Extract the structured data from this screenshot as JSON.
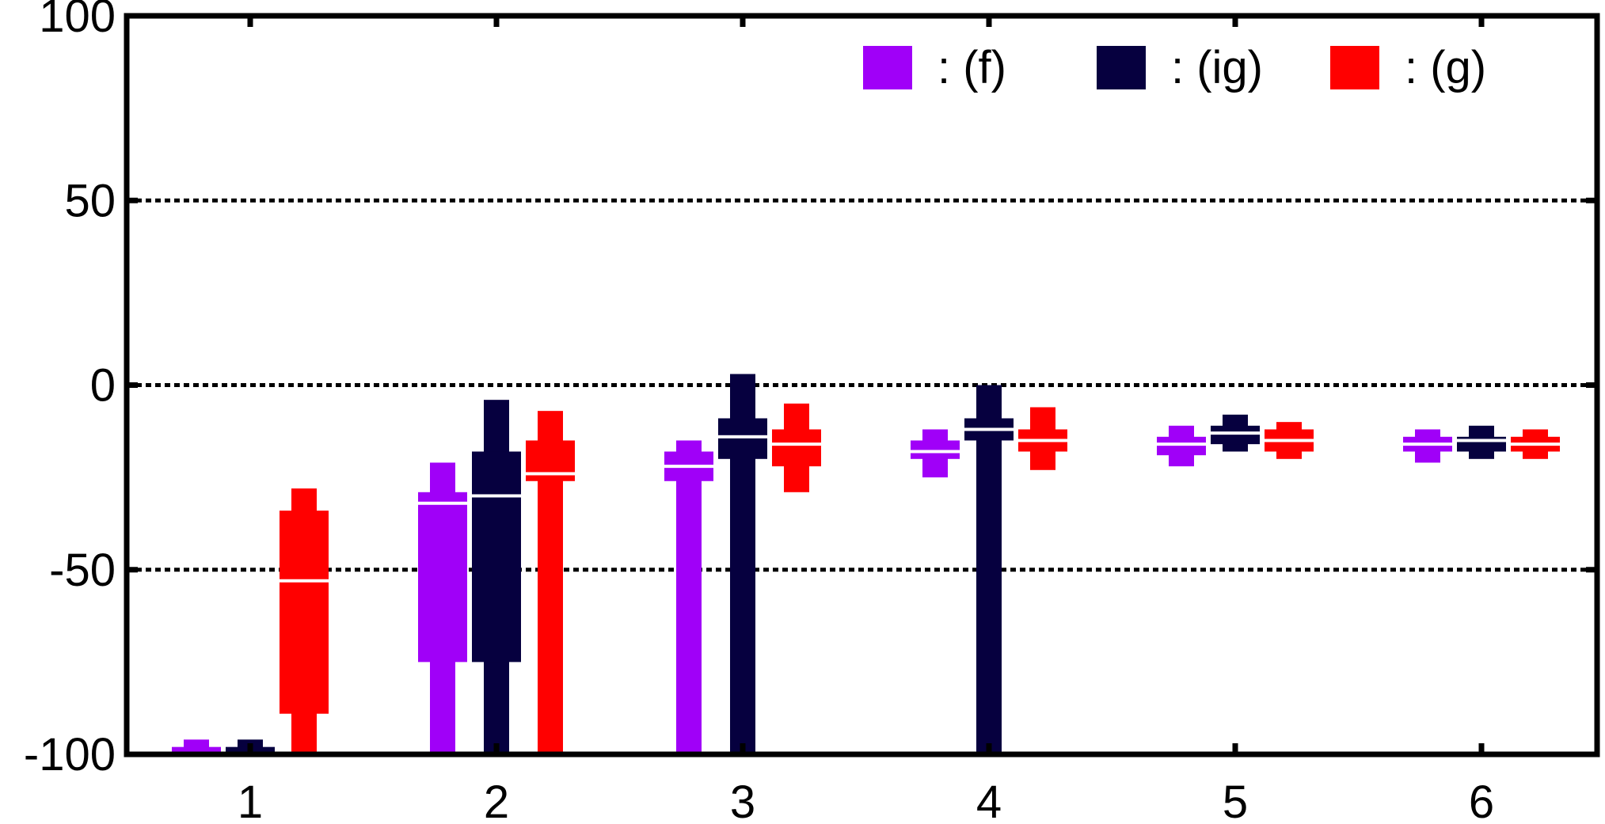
{
  "chart_data": {
    "type": "box",
    "categories": [
      "1",
      "2",
      "3",
      "4",
      "5",
      "6"
    ],
    "ylim": [
      -100,
      100
    ],
    "yticks": [
      -100,
      -50,
      0,
      50,
      100
    ],
    "ytick_labels": [
      "-100",
      "-50",
      "0",
      "50",
      "100"
    ],
    "grid": {
      "y": [
        -50,
        0,
        50
      ],
      "style": "dotted"
    },
    "legend": {
      "position": "top-right"
    },
    "title": "",
    "xlabel": "",
    "ylabel": "",
    "series": [
      {
        "name": ": (f)",
        "color": "#a000f8",
        "boxes": [
          {
            "whisker_low": -100,
            "q1": -100,
            "median": -100,
            "q3": -98,
            "whisker_high": -96
          },
          {
            "whisker_low": -100,
            "q1": -75,
            "median": -32,
            "q3": -29,
            "whisker_high": -21
          },
          {
            "whisker_low": -100,
            "q1": -26,
            "median": -22,
            "q3": -18,
            "whisker_high": -15
          },
          {
            "whisker_low": -25,
            "q1": -20,
            "median": -18,
            "q3": -15,
            "whisker_high": -12
          },
          {
            "whisker_low": -22,
            "q1": -19,
            "median": -16,
            "q3": -14,
            "whisker_high": -11
          },
          {
            "whisker_low": -21,
            "q1": -18,
            "median": -16,
            "q3": -14,
            "whisker_high": -12
          }
        ]
      },
      {
        "name": ": (ig)",
        "color": "#06003f",
        "boxes": [
          {
            "whisker_low": -100,
            "q1": -100,
            "median": -100,
            "q3": -98,
            "whisker_high": -96
          },
          {
            "whisker_low": -100,
            "q1": -75,
            "median": -30,
            "q3": -18,
            "whisker_high": -4
          },
          {
            "whisker_low": -100,
            "q1": -20,
            "median": -14,
            "q3": -9,
            "whisker_high": 3
          },
          {
            "whisker_low": -100,
            "q1": -15,
            "median": -12,
            "q3": -9,
            "whisker_high": 0
          },
          {
            "whisker_low": -18,
            "q1": -16,
            "median": -13,
            "q3": -11,
            "whisker_high": -8
          },
          {
            "whisker_low": -20,
            "q1": -18,
            "median": -15,
            "q3": -14,
            "whisker_high": -11
          }
        ]
      },
      {
        "name": ": (g)",
        "color": "#ff0000",
        "boxes": [
          {
            "whisker_low": -100,
            "q1": -89,
            "median": -53,
            "q3": -34,
            "whisker_high": -28
          },
          {
            "whisker_low": -100,
            "q1": -26,
            "median": -24,
            "q3": -15,
            "whisker_high": -7
          },
          {
            "whisker_low": -29,
            "q1": -22,
            "median": -16,
            "q3": -12,
            "whisker_high": -5
          },
          {
            "whisker_low": -23,
            "q1": -18,
            "median": -15,
            "q3": -12,
            "whisker_high": -6
          },
          {
            "whisker_low": -20,
            "q1": -18,
            "median": -15,
            "q3": -12,
            "whisker_high": -10
          },
          {
            "whisker_low": -20,
            "q1": -18,
            "median": -16,
            "q3": -14,
            "whisker_high": -12
          }
        ]
      }
    ]
  }
}
